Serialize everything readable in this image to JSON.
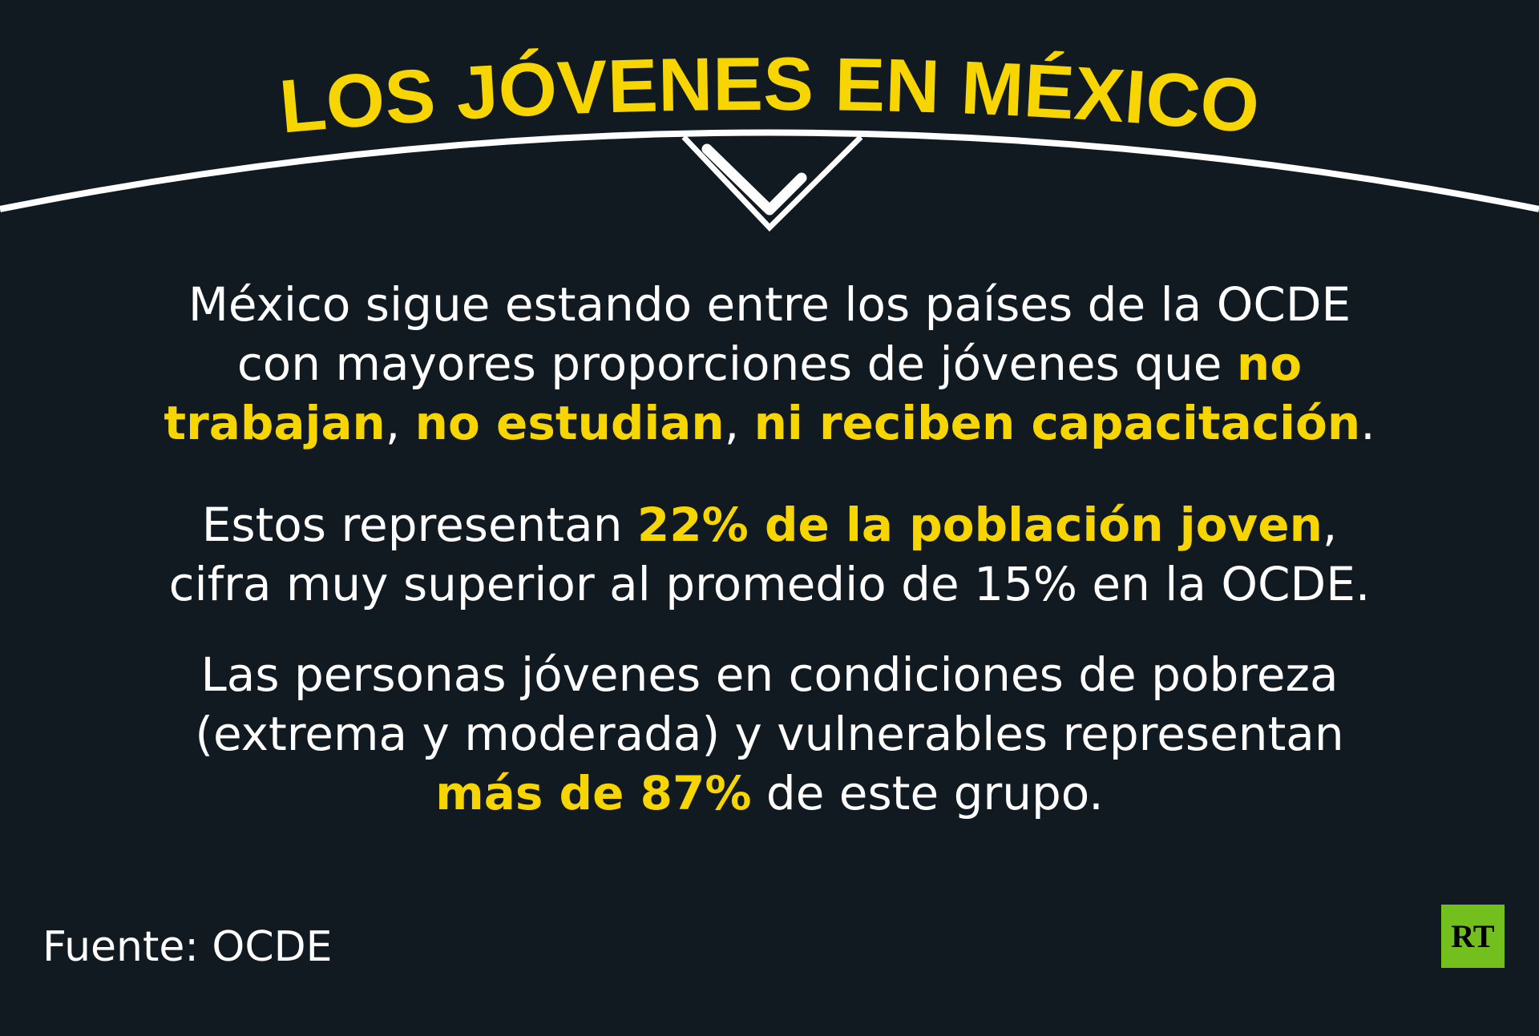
{
  "header": {
    "title": "LOS JÓVENES EN MÉXICO"
  },
  "paragraphs": [
    {
      "lines": [
        {
          "segments": [
            {
              "text": "México sigue estando entre los países de la OCDE",
              "emphasis": false
            }
          ]
        },
        {
          "segments": [
            {
              "text": "con mayores proporciones de jóvenes que ",
              "emphasis": false
            },
            {
              "text": "no",
              "emphasis": true
            }
          ]
        },
        {
          "segments": [
            {
              "text": "trabajan",
              "emphasis": true
            },
            {
              "text": ", ",
              "emphasis": false
            },
            {
              "text": "no estudian",
              "emphasis": true
            },
            {
              "text": ", ",
              "emphasis": false
            },
            {
              "text": "ni reciben capacitación",
              "emphasis": true
            },
            {
              "text": ".",
              "emphasis": false
            }
          ]
        }
      ]
    },
    {
      "lines": [
        {
          "segments": [
            {
              "text": "Estos representan ",
              "emphasis": false
            },
            {
              "text": "22% de la población joven",
              "emphasis": true
            },
            {
              "text": ",",
              "emphasis": false
            }
          ]
        },
        {
          "segments": [
            {
              "text": "cifra muy superior al promedio de 15% en la OCDE.",
              "emphasis": false
            }
          ]
        }
      ]
    },
    {
      "lines": [
        {
          "segments": [
            {
              "text": "Las personas jóvenes en condiciones de pobreza",
              "emphasis": false
            }
          ]
        },
        {
          "segments": [
            {
              "text": "(extrema y moderada) y vulnerables representan",
              "emphasis": false
            }
          ]
        },
        {
          "segments": [
            {
              "text": "más de 87%",
              "emphasis": true
            },
            {
              "text": " de este grupo.",
              "emphasis": false
            }
          ]
        }
      ]
    }
  ],
  "footer": {
    "source": "Fuente: OCDE",
    "logo": "RT"
  }
}
